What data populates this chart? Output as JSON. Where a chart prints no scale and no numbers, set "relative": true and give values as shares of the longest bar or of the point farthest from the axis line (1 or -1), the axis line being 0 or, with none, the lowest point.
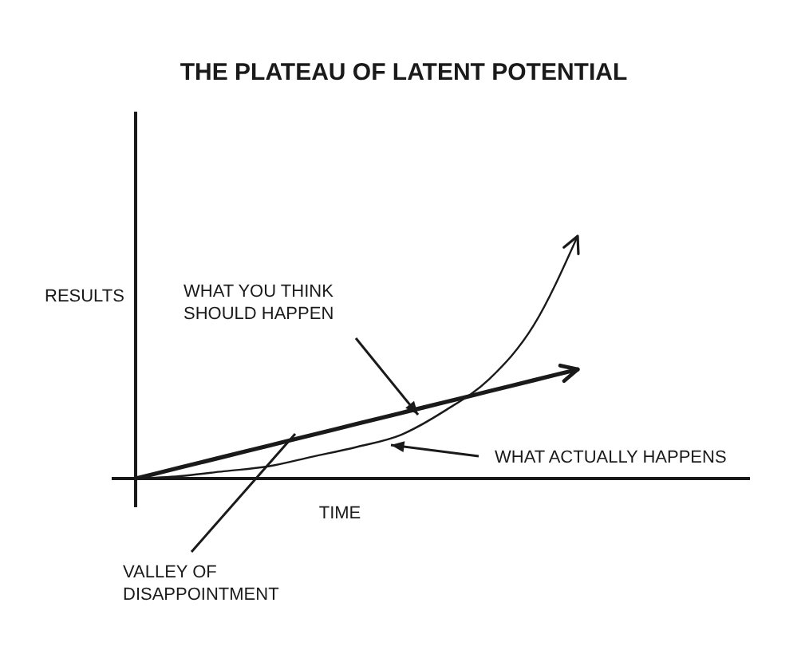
{
  "chart_data": {
    "type": "line",
    "title": "THE PLATEAU OF LATENT POTENTIAL",
    "xlabel": "TIME",
    "ylabel": "RESULTS",
    "relative": true,
    "categories": [
      null,
      null,
      null,
      null,
      null,
      null,
      null,
      null,
      null,
      null,
      null
    ],
    "series": [
      {
        "color": "#1a1a1a",
        "values": [
          0,
          0.045,
          0.09,
          0.135,
          0.18,
          0.225,
          0.27,
          0.315,
          0.36,
          0.405,
          0.45
        ]
      },
      {
        "color": "#1a1a1a",
        "values": [
          0,
          0.01,
          0.03,
          0.05,
          0.09,
          0.13,
          0.18,
          0.28,
          0.41,
          0.63,
          1
        ]
      }
    ],
    "annotations": [
      "WHAT YOU THINK SHOULD HAPPEN",
      "WHAT ACTUALLY HAPPENS",
      "VALLEY OF DISAPPOINTMENT"
    ],
    "line_style": "solid",
    "marker": "none"
  }
}
